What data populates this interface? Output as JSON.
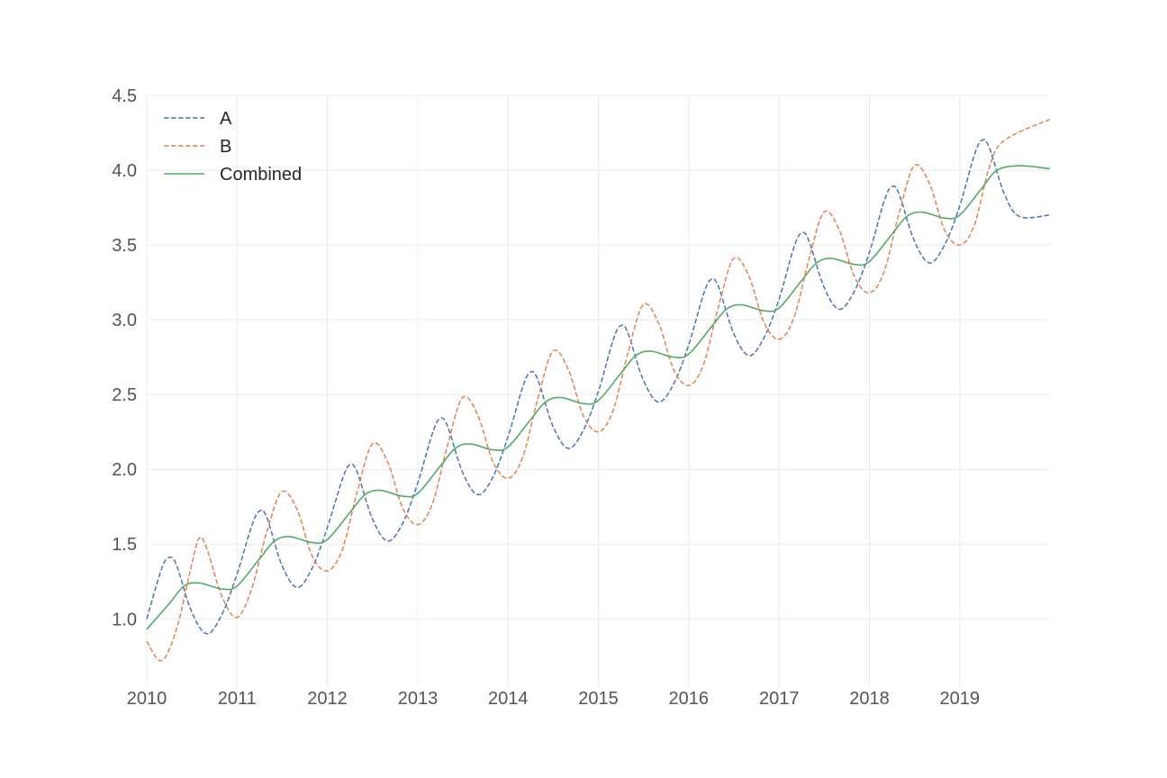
{
  "chart_data": {
    "type": "line",
    "title": "",
    "xlabel": "",
    "ylabel": "",
    "x_axis": {
      "type": "date",
      "range": [
        "2010-01-01",
        "2019-12-31"
      ],
      "ticks": [
        "2010",
        "2011",
        "2012",
        "2013",
        "2014",
        "2015",
        "2016",
        "2017",
        "2018",
        "2019"
      ]
    },
    "y_axis": {
      "range": [
        0.55,
        4.5
      ],
      "ticks": [
        "1.0",
        "1.5",
        "2.0",
        "2.5",
        "3.0",
        "3.5",
        "4.0",
        "4.5"
      ]
    },
    "grid": true,
    "legend": {
      "position": "top-left",
      "entries": [
        "A",
        "B",
        "Combined"
      ]
    },
    "series": [
      {
        "name": "A",
        "color": "#4c72b0",
        "style": "dashed",
        "points": [
          [
            "2010-01-01",
            1.0
          ],
          [
            "2010-03-01",
            1.33
          ],
          [
            "2010-04-01",
            1.41
          ],
          [
            "2010-05-01",
            1.36
          ],
          [
            "2010-07-01",
            1.05
          ],
          [
            "2010-09-01",
            0.9
          ],
          [
            "2010-11-01",
            1.03
          ],
          [
            "2011-01-01",
            1.3
          ],
          [
            "2011-03-01",
            1.62
          ],
          [
            "2011-04-01",
            1.72
          ],
          [
            "2011-05-01",
            1.68
          ],
          [
            "2011-07-01",
            1.36
          ],
          [
            "2011-09-01",
            1.21
          ],
          [
            "2011-11-01",
            1.34
          ],
          [
            "2012-01-01",
            1.61
          ],
          [
            "2012-03-01",
            1.93
          ],
          [
            "2012-04-01",
            2.03
          ],
          [
            "2012-05-01",
            1.98
          ],
          [
            "2012-07-01",
            1.67
          ],
          [
            "2012-09-01",
            1.52
          ],
          [
            "2012-11-01",
            1.64
          ],
          [
            "2013-01-01",
            1.91
          ],
          [
            "2013-03-01",
            2.24
          ],
          [
            "2013-04-01",
            2.34
          ],
          [
            "2013-05-01",
            2.29
          ],
          [
            "2013-07-01",
            1.98
          ],
          [
            "2013-09-01",
            1.83
          ],
          [
            "2013-11-01",
            1.95
          ],
          [
            "2014-01-01",
            2.22
          ],
          [
            "2014-03-01",
            2.55
          ],
          [
            "2014-04-01",
            2.65
          ],
          [
            "2014-05-01",
            2.6
          ],
          [
            "2014-07-01",
            2.29
          ],
          [
            "2014-09-01",
            2.14
          ],
          [
            "2014-11-01",
            2.26
          ],
          [
            "2015-01-01",
            2.52
          ],
          [
            "2015-03-01",
            2.86
          ],
          [
            "2015-04-01",
            2.96
          ],
          [
            "2015-05-01",
            2.91
          ],
          [
            "2015-07-01",
            2.6
          ],
          [
            "2015-09-01",
            2.45
          ],
          [
            "2015-11-01",
            2.57
          ],
          [
            "2016-01-01",
            2.83
          ],
          [
            "2016-03-01",
            3.17
          ],
          [
            "2016-04-01",
            3.27
          ],
          [
            "2016-05-01",
            3.22
          ],
          [
            "2016-07-01",
            2.91
          ],
          [
            "2016-09-01",
            2.76
          ],
          [
            "2016-11-01",
            2.88
          ],
          [
            "2017-01-01",
            3.14
          ],
          [
            "2017-03-01",
            3.48
          ],
          [
            "2017-04-01",
            3.58
          ],
          [
            "2017-05-01",
            3.53
          ],
          [
            "2017-07-01",
            3.22
          ],
          [
            "2017-09-01",
            3.07
          ],
          [
            "2017-11-01",
            3.19
          ],
          [
            "2018-01-01",
            3.45
          ],
          [
            "2018-03-01",
            3.79
          ],
          [
            "2018-04-01",
            3.89
          ],
          [
            "2018-05-01",
            3.84
          ],
          [
            "2018-07-01",
            3.53
          ],
          [
            "2018-09-01",
            3.38
          ],
          [
            "2018-11-01",
            3.5
          ],
          [
            "2019-01-01",
            3.76
          ],
          [
            "2019-03-01",
            4.1
          ],
          [
            "2019-04-01",
            4.2
          ],
          [
            "2019-05-01",
            4.15
          ],
          [
            "2019-07-01",
            3.84
          ],
          [
            "2019-09-01",
            3.69
          ],
          [
            "2019-12-31",
            3.7
          ]
        ]
      },
      {
        "name": "B",
        "color": "#dd8452",
        "style": "dashed",
        "points": [
          [
            "2010-01-01",
            0.85
          ],
          [
            "2010-03-01",
            0.72
          ],
          [
            "2010-05-01",
            0.93
          ],
          [
            "2010-07-01",
            1.36
          ],
          [
            "2010-08-01",
            1.54
          ],
          [
            "2010-09-01",
            1.47
          ],
          [
            "2010-11-01",
            1.15
          ],
          [
            "2011-01-01",
            1.01
          ],
          [
            "2011-03-01",
            1.2
          ],
          [
            "2011-05-01",
            1.58
          ],
          [
            "2011-07-01",
            1.85
          ],
          [
            "2011-09-01",
            1.73
          ],
          [
            "2011-11-01",
            1.42
          ],
          [
            "2012-01-01",
            1.32
          ],
          [
            "2012-03-01",
            1.46
          ],
          [
            "2012-05-01",
            1.85
          ],
          [
            "2012-07-01",
            2.17
          ],
          [
            "2012-09-01",
            2.05
          ],
          [
            "2012-11-01",
            1.74
          ],
          [
            "2013-01-01",
            1.63
          ],
          [
            "2013-03-01",
            1.77
          ],
          [
            "2013-05-01",
            2.16
          ],
          [
            "2013-07-01",
            2.48
          ],
          [
            "2013-09-01",
            2.36
          ],
          [
            "2013-11-01",
            2.05
          ],
          [
            "2014-01-01",
            1.94
          ],
          [
            "2014-03-01",
            2.08
          ],
          [
            "2014-05-01",
            2.47
          ],
          [
            "2014-07-01",
            2.79
          ],
          [
            "2014-09-01",
            2.67
          ],
          [
            "2014-11-01",
            2.36
          ],
          [
            "2015-01-01",
            2.25
          ],
          [
            "2015-03-01",
            2.39
          ],
          [
            "2015-05-01",
            2.78
          ],
          [
            "2015-07-01",
            3.1
          ],
          [
            "2015-09-01",
            2.98
          ],
          [
            "2015-11-01",
            2.67
          ],
          [
            "2016-01-01",
            2.56
          ],
          [
            "2016-03-01",
            2.7
          ],
          [
            "2016-05-01",
            3.09
          ],
          [
            "2016-07-01",
            3.41
          ],
          [
            "2016-09-01",
            3.29
          ],
          [
            "2016-11-01",
            2.98
          ],
          [
            "2017-01-01",
            2.87
          ],
          [
            "2017-03-01",
            3.01
          ],
          [
            "2017-05-01",
            3.4
          ],
          [
            "2017-07-01",
            3.72
          ],
          [
            "2017-09-01",
            3.6
          ],
          [
            "2017-11-01",
            3.29
          ],
          [
            "2018-01-01",
            3.18
          ],
          [
            "2018-03-01",
            3.32
          ],
          [
            "2018-05-01",
            3.71
          ],
          [
            "2018-07-01",
            4.03
          ],
          [
            "2018-09-01",
            3.91
          ],
          [
            "2018-11-01",
            3.6
          ],
          [
            "2019-01-01",
            3.5
          ],
          [
            "2019-03-01",
            3.63
          ],
          [
            "2019-05-01",
            4.02
          ],
          [
            "2019-07-01",
            4.2
          ],
          [
            "2019-12-31",
            4.34
          ]
        ]
      },
      {
        "name": "Combined",
        "color": "#55a868",
        "style": "solid",
        "points": [
          [
            "2010-01-01",
            0.93
          ],
          [
            "2010-04-01",
            1.1
          ],
          [
            "2010-06-01",
            1.22
          ],
          [
            "2010-08-01",
            1.24
          ],
          [
            "2010-11-01",
            1.2
          ],
          [
            "2011-01-01",
            1.22
          ],
          [
            "2011-04-01",
            1.4
          ],
          [
            "2011-06-01",
            1.52
          ],
          [
            "2011-08-01",
            1.55
          ],
          [
            "2011-11-01",
            1.51
          ],
          [
            "2012-01-01",
            1.53
          ],
          [
            "2012-04-01",
            1.71
          ],
          [
            "2012-06-01",
            1.83
          ],
          [
            "2012-08-01",
            1.86
          ],
          [
            "2012-11-01",
            1.82
          ],
          [
            "2013-01-01",
            1.84
          ],
          [
            "2013-04-01",
            2.02
          ],
          [
            "2013-06-01",
            2.14
          ],
          [
            "2013-08-01",
            2.17
          ],
          [
            "2013-11-01",
            2.13
          ],
          [
            "2014-01-01",
            2.15
          ],
          [
            "2014-04-01",
            2.33
          ],
          [
            "2014-06-01",
            2.45
          ],
          [
            "2014-08-01",
            2.48
          ],
          [
            "2014-11-01",
            2.44
          ],
          [
            "2015-01-01",
            2.46
          ],
          [
            "2015-04-01",
            2.64
          ],
          [
            "2015-06-01",
            2.76
          ],
          [
            "2015-08-01",
            2.79
          ],
          [
            "2015-11-01",
            2.75
          ],
          [
            "2016-01-01",
            2.77
          ],
          [
            "2016-04-01",
            2.95
          ],
          [
            "2016-06-01",
            3.07
          ],
          [
            "2016-08-01",
            3.1
          ],
          [
            "2016-11-01",
            3.06
          ],
          [
            "2017-01-01",
            3.08
          ],
          [
            "2017-04-01",
            3.26
          ],
          [
            "2017-06-01",
            3.38
          ],
          [
            "2017-08-01",
            3.41
          ],
          [
            "2017-11-01",
            3.37
          ],
          [
            "2018-01-01",
            3.39
          ],
          [
            "2018-04-01",
            3.57
          ],
          [
            "2018-06-01",
            3.69
          ],
          [
            "2018-08-01",
            3.72
          ],
          [
            "2018-11-01",
            3.68
          ],
          [
            "2019-01-01",
            3.7
          ],
          [
            "2019-04-01",
            3.88
          ],
          [
            "2019-06-01",
            4.0
          ],
          [
            "2019-09-01",
            4.03
          ],
          [
            "2019-12-31",
            4.01
          ]
        ]
      }
    ]
  }
}
